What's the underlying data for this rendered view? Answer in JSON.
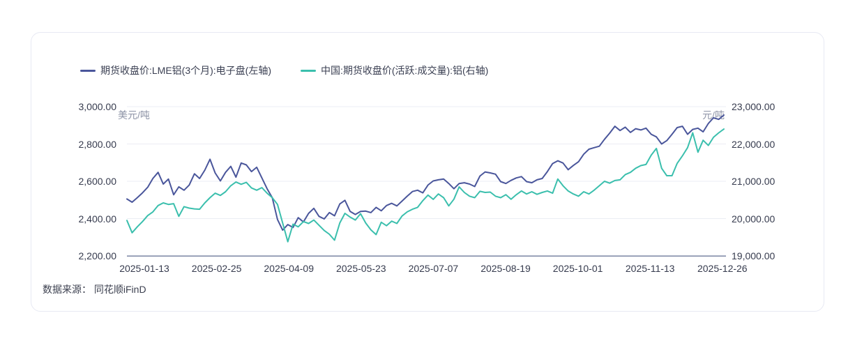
{
  "footer": {
    "text": "数据来源： 同花顺iFinD"
  },
  "chart_data": {
    "type": "line",
    "title": "",
    "legend_position": "top",
    "grid": true,
    "x_tick_labels": [
      "2025-01-13",
      "2025-02-25",
      "2025-04-09",
      "2025-05-23",
      "2025-07-07",
      "2025-08-19",
      "2025-10-01",
      "2025-11-13",
      "2025-12-26"
    ],
    "left_axis": {
      "unit": "美元/吨",
      "min": 2200,
      "max": 3000,
      "tick_values": [
        3000,
        2800,
        2600,
        2400,
        2200
      ],
      "tick_labels": [
        "3,000.00",
        "2,800.00",
        "2,600.00",
        "2,400.00",
        "2,200.00"
      ]
    },
    "right_axis": {
      "unit": "元/吨",
      "min": 19000,
      "max": 23000,
      "tick_values": [
        23000,
        22000,
        21000,
        20000,
        19000
      ],
      "tick_labels": [
        "23,000.00",
        "22,000.00",
        "21,000.00",
        "20,000.00",
        "19,000.00"
      ]
    },
    "colors": {
      "grid": "#ebedf4",
      "axis_line": "#7a84a3"
    },
    "series": [
      {
        "name": "期货收盘价:LME铝(3个月):电子盘(左轴)",
        "axis": "left",
        "color": "#4a569b",
        "values": [
          2505,
          2488,
          2512,
          2538,
          2568,
          2615,
          2648,
          2585,
          2612,
          2528,
          2570,
          2552,
          2580,
          2640,
          2615,
          2660,
          2718,
          2645,
          2602,
          2648,
          2680,
          2622,
          2698,
          2688,
          2652,
          2675,
          2618,
          2560,
          2512,
          2395,
          2338,
          2368,
          2352,
          2405,
          2382,
          2428,
          2455,
          2412,
          2398,
          2432,
          2415,
          2478,
          2498,
          2438,
          2422,
          2438,
          2440,
          2432,
          2460,
          2442,
          2470,
          2482,
          2468,
          2494,
          2520,
          2545,
          2552,
          2538,
          2580,
          2602,
          2608,
          2612,
          2588,
          2560,
          2588,
          2592,
          2585,
          2572,
          2628,
          2650,
          2645,
          2638,
          2598,
          2588,
          2605,
          2618,
          2625,
          2598,
          2592,
          2608,
          2615,
          2652,
          2695,
          2710,
          2698,
          2662,
          2685,
          2705,
          2745,
          2772,
          2780,
          2788,
          2825,
          2858,
          2895,
          2872,
          2890,
          2862,
          2882,
          2875,
          2885,
          2852,
          2838,
          2800,
          2818,
          2852,
          2888,
          2895,
          2852,
          2878,
          2885,
          2865,
          2910,
          2940,
          2932,
          2955
        ]
      },
      {
        "name": "中国:期货收盘价(活跃:成交量):铝(右轴)",
        "axis": "right",
        "color": "#3bbfad",
        "values": [
          19950,
          19620,
          19780,
          19920,
          20080,
          20180,
          20350,
          20420,
          20380,
          20400,
          20060,
          20320,
          20280,
          20260,
          20250,
          20420,
          20560,
          20680,
          20620,
          20720,
          20880,
          20980,
          20920,
          20970,
          20820,
          20760,
          20830,
          20680,
          20560,
          20380,
          19880,
          19380,
          19850,
          19780,
          19920,
          19870,
          19960,
          19820,
          19680,
          19580,
          19420,
          19880,
          20140,
          20040,
          19960,
          20130,
          19880,
          19700,
          19570,
          19900,
          19810,
          19930,
          19870,
          20070,
          20180,
          20250,
          20300,
          20480,
          20630,
          20515,
          20660,
          20560,
          20340,
          20520,
          20850,
          20700,
          20600,
          20560,
          20730,
          20700,
          20710,
          20600,
          20560,
          20640,
          20520,
          20640,
          20740,
          20660,
          20720,
          20650,
          20700,
          20740,
          20680,
          21060,
          20880,
          20740,
          20660,
          20600,
          20720,
          20660,
          20760,
          20880,
          21000,
          20950,
          21020,
          21040,
          21180,
          21240,
          21350,
          21420,
          21450,
          21700,
          21880,
          21350,
          21150,
          21150,
          21480,
          21680,
          21900,
          22300,
          21780,
          22100,
          21960,
          22180,
          22300,
          22400
        ]
      }
    ]
  }
}
